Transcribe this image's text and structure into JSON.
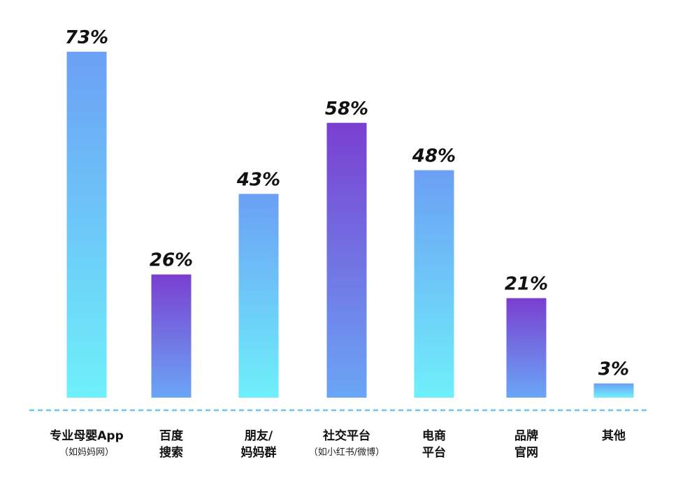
{
  "chart_data": {
    "type": "bar",
    "categories": [
      {
        "lines": [
          "专业母婴App"
        ],
        "sub": "（如妈妈网）"
      },
      {
        "lines": [
          "百度",
          "搜索"
        ],
        "sub": ""
      },
      {
        "lines": [
          "朋友/",
          "妈妈群"
        ],
        "sub": ""
      },
      {
        "lines": [
          "社交平台"
        ],
        "sub": "（如小红书/微博）"
      },
      {
        "lines": [
          "电商",
          "平台"
        ],
        "sub": ""
      },
      {
        "lines": [
          "品牌",
          "官网"
        ],
        "sub": ""
      },
      {
        "lines": [
          "其他"
        ],
        "sub": ""
      }
    ],
    "values": [
      73,
      26,
      43,
      58,
      48,
      21,
      3
    ],
    "value_labels": [
      "73%",
      "26%",
      "43%",
      "58%",
      "48%",
      "21%",
      "3%"
    ],
    "unit": "%",
    "ylim": [
      0,
      100
    ],
    "gradient_style": [
      "blue-cyan",
      "purple-blue",
      "blue-cyan",
      "purple-blue",
      "blue-cyan",
      "purple-blue",
      "blue-cyan"
    ],
    "colors": {
      "blue_top": "#6c9ff5",
      "cyan_bottom": "#6ef0fa",
      "purple_top": "#7a3fd0",
      "purple_bottom": "#6aa6f6",
      "baseline": "#6ec6ee"
    },
    "title": "",
    "xlabel": "",
    "ylabel": "",
    "grid": false,
    "legend": "none"
  }
}
